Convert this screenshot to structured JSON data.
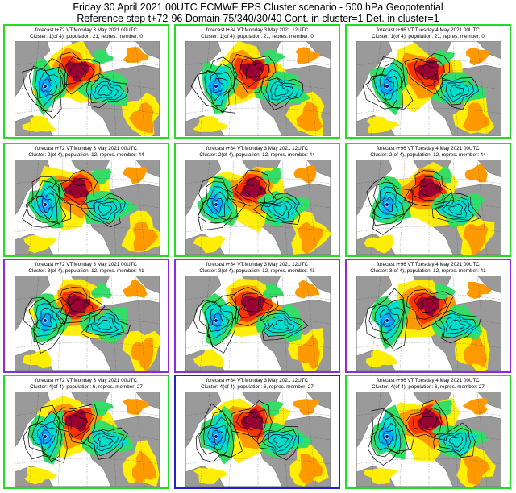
{
  "header": {
    "line1": "Friday 30 April 2021 00UTC ECMWF EPS Cluster scenario - 500 hPa Geopotential",
    "line2": "Reference step t+72-96 Domain 75/340/30/40 Cont. in cluster=1 Det. in cluster=1"
  },
  "colors": {
    "cluster1": "#22dd22",
    "cluster2": "#22dd22",
    "cluster3": "#8a2be2",
    "cluster4": "#22dd22",
    "highlight": "#2222cc",
    "land": "#9a9a9a",
    "sea": "#ffffff",
    "anomaly_pos": [
      "#ffee00",
      "#ff9900",
      "#ff3300",
      "#990033"
    ],
    "anomaly_neg": [
      "#33dd66",
      "#00ddcc",
      "#00aaff"
    ]
  },
  "panels": [
    {
      "t1": "forecast t+72 VT:Monday 3 May 2021 00UTC",
      "t2": "Cluster: 1(of 4), population: 21, repres. member: 0",
      "border": "#22dd22"
    },
    {
      "t1": "forecast t+84 VT:Monday 3 May 2021 12UTC",
      "t2": "Cluster: 1(of 4), population: 21, repres. member: 0",
      "border": "#22dd22"
    },
    {
      "t1": "forecast t+96 VT:Tuesday 4 May 2021 00UTC",
      "t2": "Cluster: 1(of 4), population: 21, repres. member: 0",
      "border": "#22dd22"
    },
    {
      "t1": "forecast t+72 VT:Monday 3 May 2021 00UTC",
      "t2": "Cluster: 2(of 4), population: 12, repres. member: 44",
      "border": "#22dd22"
    },
    {
      "t1": "forecast t+84 VT:Monday 3 May 2021 12UTC",
      "t2": "Cluster: 2(of 4), population: 12, repres. member: 44",
      "border": "#22dd22"
    },
    {
      "t1": "forecast t+96 VT:Tuesday 4 May 2021 00UTC",
      "t2": "Cluster: 2(of 4), population: 12, repres. member: 44",
      "border": "#22dd22"
    },
    {
      "t1": "forecast t+72 VT:Monday 3 May 2021 00UTC",
      "t2": "Cluster: 3(of 4), population: 12, repres. member: 41",
      "border": "#8a2be2"
    },
    {
      "t1": "forecast t+84 VT:Monday 3 May 2021 12UTC",
      "t2": "Cluster: 3(of 4), population: 12, repres. member: 41",
      "border": "#8a2be2"
    },
    {
      "t1": "forecast t+96 VT:Tuesday 4 May 2021 00UTC",
      "t2": "Cluster: 3(of 4), population: 12, repres. member: 41",
      "border": "#8a2be2"
    },
    {
      "t1": "forecast t+72 VT:Monday 3 May 2021 00UTC",
      "t2": "Cluster: 4(of 4), population: 6, repres. member: 27",
      "border": "#22dd22"
    },
    {
      "t1": "forecast t+84 VT:Monday 3 May 2021 12UTC",
      "t2": "Cluster: 4(of 4), population: 6, repres. member: 27",
      "border": "#2222cc"
    },
    {
      "t1": "forecast t+96 VT:Tuesday 4 May 2021 00UTC",
      "t2": "Cluster: 4(of 4), population: 6, repres. member: 27",
      "border": "#22dd22"
    }
  ]
}
